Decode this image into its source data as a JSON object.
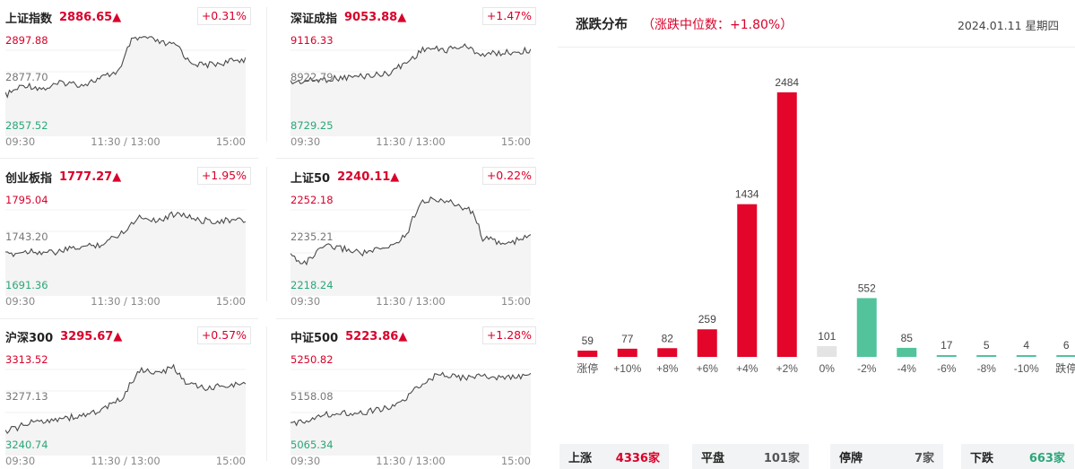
{
  "indices": [
    {
      "name": "上证指数",
      "price": "2886.65▲",
      "pct": "+0.31%",
      "tick_top": "2897.88",
      "tick_mid": "2877.70",
      "tick_bot": "2857.52",
      "x_start": "09:30",
      "x_mid": "11:30 / 13:00",
      "x_end": "15:00"
    },
    {
      "name": "深证成指",
      "price": "9053.88▲",
      "pct": "+1.47%",
      "tick_top": "9116.33",
      "tick_mid": "8922.79",
      "tick_bot": "8729.25",
      "x_start": "09:30",
      "x_mid": "11:30 / 13:00",
      "x_end": "15:00"
    },
    {
      "name": "创业板指",
      "price": "1777.27▲",
      "pct": "+1.95%",
      "tick_top": "1795.04",
      "tick_mid": "1743.20",
      "tick_bot": "1691.36",
      "x_start": "09:30",
      "x_mid": "11:30 / 13:00",
      "x_end": "15:00"
    },
    {
      "name": "上证50",
      "price": "2240.11▲",
      "pct": "+0.22%",
      "tick_top": "2252.18",
      "tick_mid": "2235.21",
      "tick_bot": "2218.24",
      "x_start": "09:30",
      "x_mid": "11:30 / 13:00",
      "x_end": "15:00"
    },
    {
      "name": "沪深300",
      "price": "3295.67▲",
      "pct": "+0.57%",
      "tick_top": "3313.52",
      "tick_mid": "3277.13",
      "tick_bot": "3240.74",
      "x_start": "09:30",
      "x_mid": "11:30 / 13:00",
      "x_end": "15:00"
    },
    {
      "name": "中证500",
      "price": "5223.86▲",
      "pct": "+1.28%",
      "tick_top": "5250.82",
      "tick_mid": "5158.08",
      "tick_bot": "5065.34",
      "x_start": "09:30",
      "x_mid": "11:30 / 13:00",
      "x_end": "15:00"
    }
  ],
  "distribution": {
    "title": "涨跌分布",
    "subtitle": "（涨跌中位数：+1.80%）",
    "date": "2024.01.11 星期四"
  },
  "chart_data": {
    "type": "bar",
    "categories": [
      "涨停",
      "+10%",
      "+8%",
      "+6%",
      "+4%",
      "+2%",
      "0%",
      "-2%",
      "-4%",
      "-6%",
      "-8%",
      "-10%",
      "跌停"
    ],
    "values": [
      59,
      77,
      82,
      259,
      1434,
      2484,
      101,
      552,
      85,
      17,
      5,
      4,
      6
    ],
    "colors": [
      "#e3052a",
      "#e3052a",
      "#e3052a",
      "#e3052a",
      "#e3052a",
      "#e3052a",
      "#e4e4e4",
      "#52c39b",
      "#52c39b",
      "#52c39b",
      "#52c39b",
      "#52c39b",
      "#52c39b"
    ],
    "title": "",
    "xlabel": "",
    "ylabel": "",
    "ylim": [
      0,
      2484
    ]
  },
  "summary": [
    {
      "label": "上涨",
      "value": "4336",
      "unit": "家",
      "color": "#d9002a"
    },
    {
      "label": "平盘",
      "value": "101",
      "unit": "家",
      "color": "#555555"
    },
    {
      "label": "停牌",
      "value": "7",
      "unit": "家",
      "color": "#555555"
    },
    {
      "label": "下跌",
      "value": "663",
      "unit": "家",
      "color": "#2aa779"
    }
  ],
  "colors": {
    "up": "#d9002a",
    "down": "#2aa779",
    "line": "#4a4a4a"
  }
}
